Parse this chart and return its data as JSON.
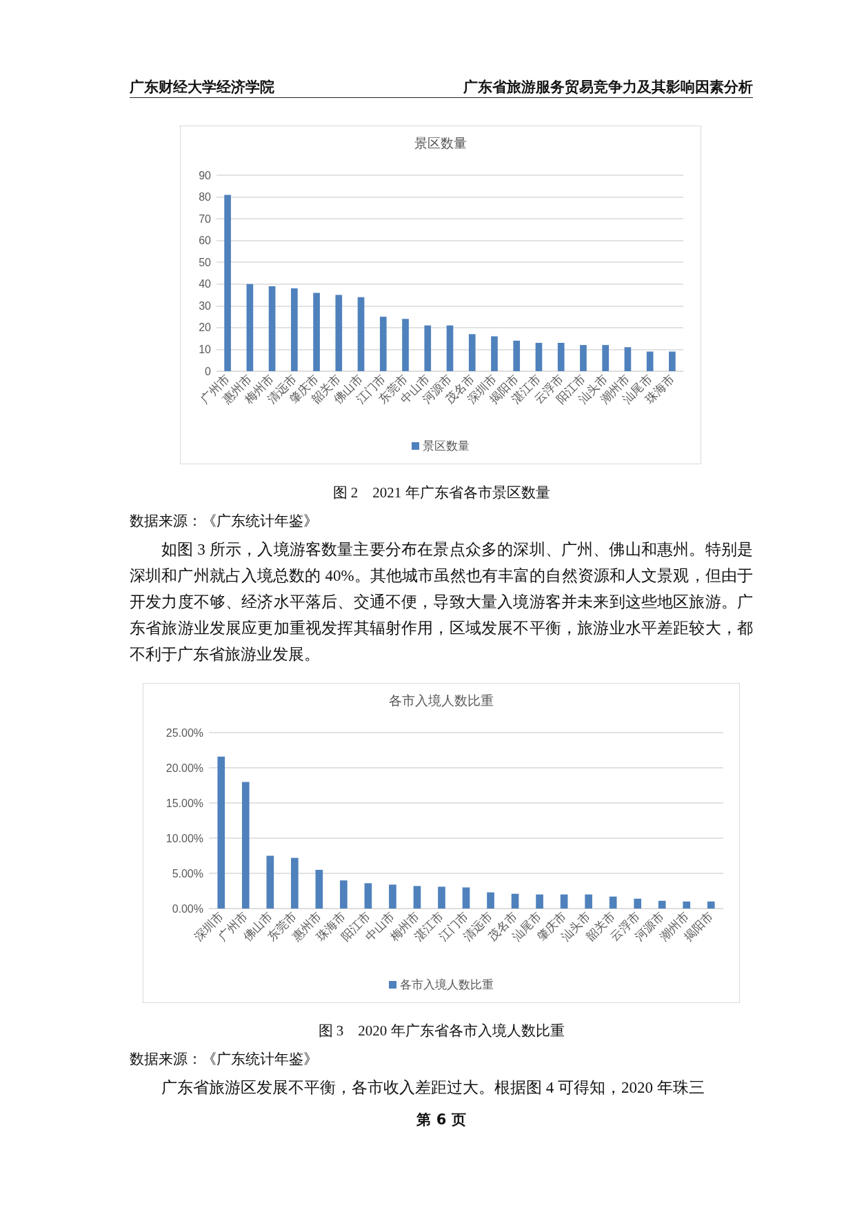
{
  "chart_data": [
    {
      "type": "bar",
      "title": "景区数量",
      "categories": [
        "广州市",
        "惠州市",
        "梅州市",
        "清远市",
        "肇庆市",
        "韶关市",
        "佛山市",
        "江门市",
        "东莞市",
        "中山市",
        "河源市",
        "茂名市",
        "深圳市",
        "揭阳市",
        "湛江市",
        "云浮市",
        "阳江市",
        "汕头市",
        "潮州市",
        "汕尾市",
        "珠海市"
      ],
      "series": [
        {
          "name": "景区数量",
          "color": "#4f81bd",
          "values": [
            81,
            40,
            39,
            38,
            36,
            35,
            34,
            25,
            24,
            21,
            21,
            17,
            16,
            14,
            13,
            13,
            12,
            12,
            11,
            9,
            9
          ]
        }
      ],
      "ylim": [
        0,
        90
      ],
      "yticks": [
        0,
        10,
        20,
        30,
        40,
        50,
        60,
        70,
        80,
        90
      ],
      "grid": "y",
      "legend": "bottom",
      "annotations": [
        "广东财经大学经济学院",
        "广东省旅游服务贸易竞争力及其影响因素分析",
        "图 2　2021 年广东省各市景区数量",
        "数据来源：《广东统计年鉴》",
        "如图 3 所示，入境游客数量主要分布在景点众多的深圳、广州、佛山和惠州。特别是深圳和广州就占入境总数的 40%。其他城市虽然也有丰富的自然资源和人文景观，但由于开发力度不够、经济水平落后、交通不便，导致大量入境游客并未来到这些地区旅游。广东省旅游业发展应更加重视发挥其辐射作用，区域发展不平衡，旅游业水平差距较大，都不利于广东省旅游业发展。"
      ]
    },
    {
      "type": "bar",
      "title": "各市入境人数比重",
      "categories": [
        "深圳市",
        "广州市",
        "佛山市",
        "东莞市",
        "惠州市",
        "珠海市",
        "阳江市",
        "中山市",
        "梅州市",
        "湛江市",
        "江门市",
        "清远市",
        "茂名市",
        "汕尾市",
        "肇庆市",
        "汕头市",
        "韶关市",
        "云浮市",
        "河源市",
        "潮州市",
        "揭阳市"
      ],
      "series": [
        {
          "name": "各市入境人数比重",
          "color": "#4f81bd",
          "values": [
            21.6,
            18.0,
            7.5,
            7.2,
            5.5,
            4.0,
            3.6,
            3.4,
            3.2,
            3.1,
            3.0,
            2.3,
            2.1,
            2.0,
            2.0,
            2.0,
            1.7,
            1.4,
            1.1,
            1.0,
            1.0
          ]
        }
      ],
      "ylim": [
        0,
        25
      ],
      "yticks": [
        {
          "value": 0,
          "label": "0.00%"
        },
        {
          "value": 5,
          "label": "5.00%"
        },
        {
          "value": 10,
          "label": "10.00%"
        },
        {
          "value": 15,
          "label": "15.00%"
        },
        {
          "value": 20,
          "label": "20.00%"
        },
        {
          "value": 25,
          "label": "25.00%"
        }
      ],
      "grid": "y",
      "legend": "bottom",
      "annotations": [
        "图 3　2020 年广东省各市入境人数比重",
        "数据来源：《广东统计年鉴》",
        "广东省旅游区发展不平衡，各市收入差距过大。根据图 4 可得知，2020 年珠三",
        "第 6 页"
      ]
    }
  ]
}
